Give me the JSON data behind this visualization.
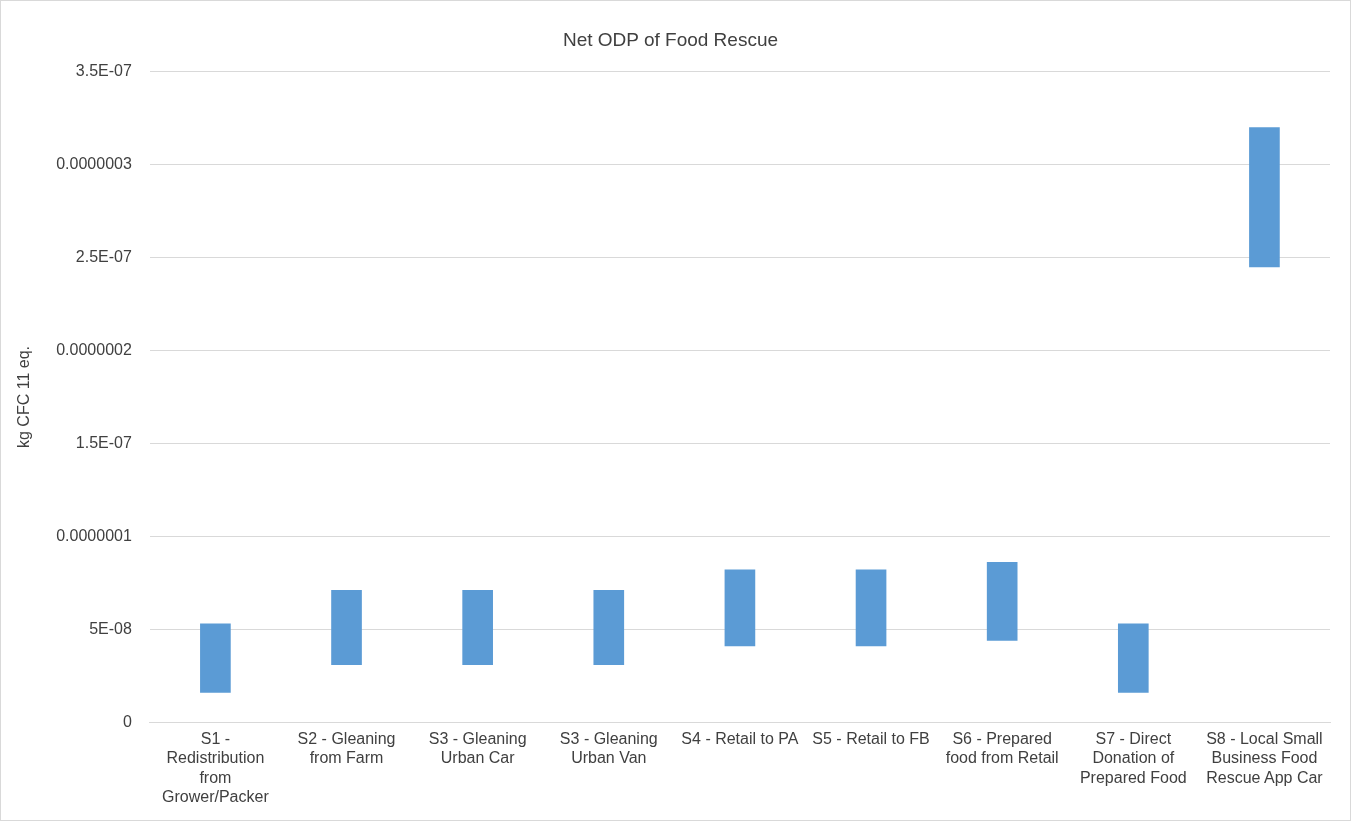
{
  "chart_data": {
    "type": "bar",
    "title": "Net ODP of Food Rescue",
    "ylabel": "kg CFC 11 eq.",
    "categories": [
      "S1 - Redistribution from Grower/Packer",
      "S2 - Gleaning from Farm",
      "S3 - Gleaning Urban Car",
      "S3 - Gleaning Urban Van",
      "S4 - Retail to PA",
      "S5 - Retail to FB",
      "S6 - Prepared food from Retail",
      "S7 - Direct Donation of Prepared Food",
      "S8 - Local Small Business Food Rescue App Car"
    ],
    "base": [
      1.6e-08,
      3.1e-08,
      3.1e-08,
      3.1e-08,
      4.1e-08,
      4.1e-08,
      4.4e-08,
      1.6e-08,
      2.45e-07
    ],
    "values": [
      3.7e-08,
      4e-08,
      4e-08,
      4e-08,
      4.1e-08,
      4.1e-08,
      4.2e-08,
      3.7e-08,
      7.5e-08
    ],
    "color": "#5b9bd5",
    "ylim": [
      0,
      3.5e-07
    ],
    "yticks": [
      {
        "value": 0,
        "label": "0"
      },
      {
        "value": 5e-08,
        "label": "5E-08"
      },
      {
        "value": 1e-07,
        "label": "0.0000001"
      },
      {
        "value": 1.5e-07,
        "label": "1.5E-07"
      },
      {
        "value": 2e-07,
        "label": "0.0000002"
      },
      {
        "value": 2.5e-07,
        "label": "2.5E-07"
      },
      {
        "value": 3e-07,
        "label": "0.0000003"
      },
      {
        "value": 3.5e-07,
        "label": "3.5E-07"
      }
    ],
    "grid": "y",
    "legend": false
  }
}
